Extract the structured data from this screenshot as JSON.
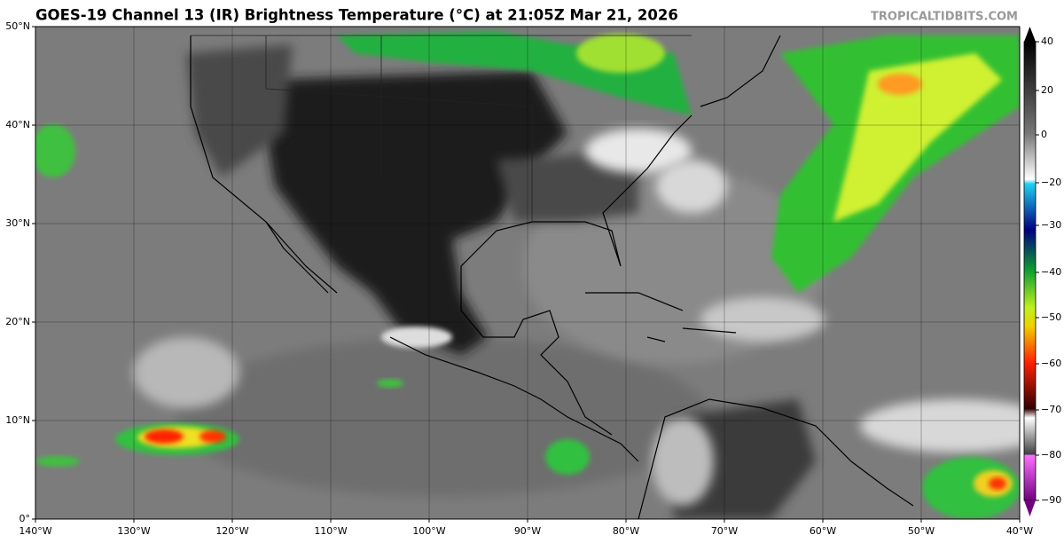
{
  "header": {
    "title": "GOES-19 Channel 13 (IR) Brightness Temperature (°C) at 21:05Z Mar 21, 2026",
    "site": "TROPICALTIDBITS.COM"
  },
  "map": {
    "longitude_labels": [
      "140°W",
      "130°W",
      "120°W",
      "110°W",
      "100°W",
      "90°W",
      "80°W",
      "70°W",
      "60°W",
      "50°W",
      "40°W"
    ],
    "latitude_labels": [
      "0°",
      "10°N",
      "20°N",
      "30°N",
      "40°N",
      "50°N"
    ]
  },
  "colorbar": {
    "labels": [
      "40",
      "20",
      "0",
      "−20",
      "−30",
      "−40",
      "−50",
      "−60",
      "−70",
      "−80",
      "−90"
    ]
  }
}
